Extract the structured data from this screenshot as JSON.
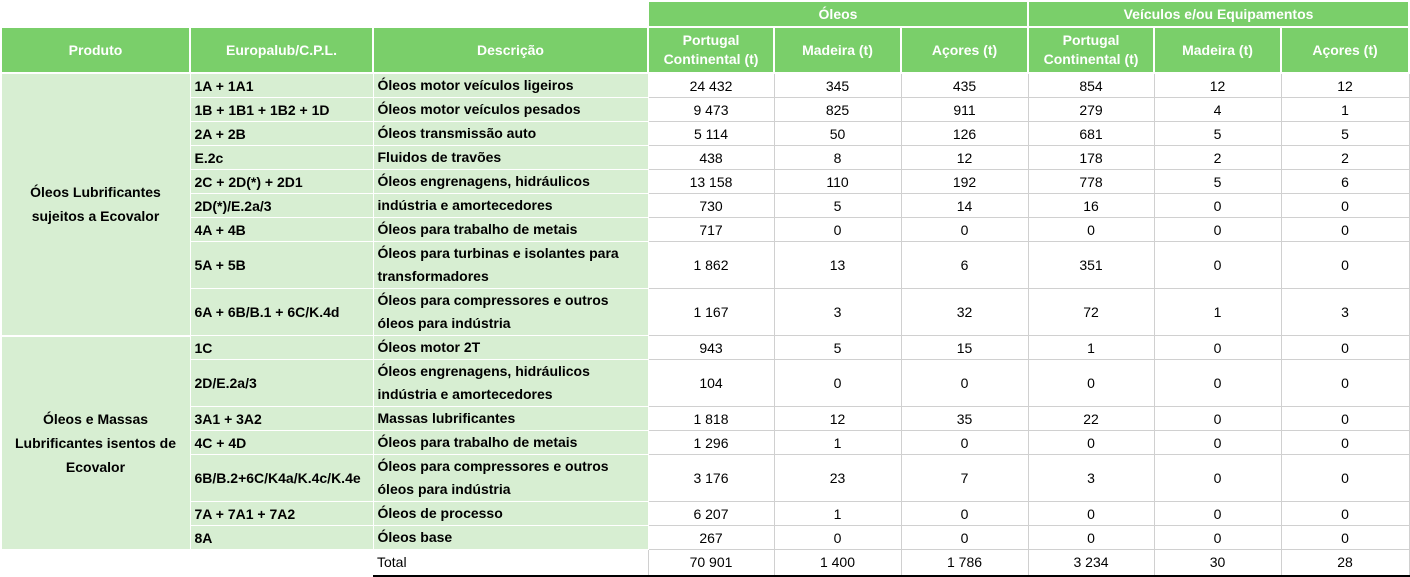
{
  "header": {
    "group_oleos": "Óleos",
    "group_veiculos": "Veículos e/ou Equipamentos",
    "col_produto": "Produto",
    "col_europalub": "Europalub/C.P.L.",
    "col_descricao": "Descrição",
    "oleos_cols": [
      "Portugal Continental (t)",
      "Madeira (t)",
      "Açores (t)"
    ],
    "veiculos_cols": [
      "Portugal Continental (t)",
      "Madeira (t)",
      "Açores (t)"
    ]
  },
  "groups": [
    {
      "produto": "Óleos Lubrificantes sujeitos a Ecovalor",
      "rows": [
        {
          "code": "1A + 1A1",
          "desc": "Óleos motor veículos ligeiros",
          "values": [
            "24 432",
            "345",
            "435",
            "854",
            "12",
            "12"
          ]
        },
        {
          "code": "1B + 1B1 + 1B2 + 1D",
          "desc": "Óleos motor veículos pesados",
          "values": [
            "9 473",
            "825",
            "911",
            "279",
            "4",
            "1"
          ]
        },
        {
          "code": "2A + 2B",
          "desc": "Óleos transmissão auto",
          "values": [
            "5 114",
            "50",
            "126",
            "681",
            "5",
            "5"
          ]
        },
        {
          "code": "E.2c",
          "desc": "Fluidos de travões",
          "values": [
            "438",
            "8",
            "12",
            "178",
            "2",
            "2"
          ]
        },
        {
          "code": "2C + 2D(*) + 2D1",
          "desc": "Óleos engrenagens, hidráulicos",
          "values": [
            "13 158",
            "110",
            "192",
            "778",
            "5",
            "6"
          ]
        },
        {
          "code": "2D(*)/E.2a/3",
          "desc": "indústria e amortecedores",
          "values": [
            "730",
            "5",
            "14",
            "16",
            "0",
            "0"
          ]
        },
        {
          "code": "4A + 4B",
          "desc": "Óleos para trabalho de metais",
          "values": [
            "717",
            "0",
            "0",
            "0",
            "0",
            "0"
          ]
        },
        {
          "code": "5A + 5B",
          "desc": "Óleos para turbinas e isolantes para transformadores",
          "values": [
            "1 862",
            "13",
            "6",
            "351",
            "0",
            "0"
          ]
        },
        {
          "code": "6A + 6B/B.1 + 6C/K.4d",
          "desc": "Óleos para compressores e outros óleos para indústria",
          "values": [
            "1 167",
            "3",
            "32",
            "72",
            "1",
            "3"
          ]
        }
      ]
    },
    {
      "produto": "Óleos e Massas Lubrificantes isentos de Ecovalor",
      "rows": [
        {
          "code": "1C",
          "desc": "Óleos motor 2T",
          "values": [
            "943",
            "5",
            "15",
            "1",
            "0",
            "0"
          ]
        },
        {
          "code": "2D/E.2a/3",
          "desc": "Óleos engrenagens, hidráulicos indústria e amortecedores",
          "values": [
            "104",
            "0",
            "0",
            "0",
            "0",
            "0"
          ]
        },
        {
          "code": "3A1 + 3A2",
          "desc": "Massas lubrificantes",
          "values": [
            "1 818",
            "12",
            "35",
            "22",
            "0",
            "0"
          ]
        },
        {
          "code": "4C + 4D",
          "desc": "Óleos para trabalho de metais",
          "values": [
            "1 296",
            "1",
            "0",
            "0",
            "0",
            "0"
          ]
        },
        {
          "code": "6B/B.2+6C/K4a/K.4c/K.4e",
          "desc": "Óleos para compressores e outros óleos para indústria",
          "values": [
            "3 176",
            "23",
            "7",
            "3",
            "0",
            "0"
          ]
        },
        {
          "code": "7A + 7A1 + 7A2",
          "desc": "Óleos de processo",
          "values": [
            "6 207",
            "1",
            "0",
            "0",
            "0",
            "0"
          ]
        },
        {
          "code": "8A",
          "desc": "Óleos base",
          "values": [
            "267",
            "0",
            "0",
            "0",
            "0",
            "0"
          ]
        }
      ]
    }
  ],
  "total": {
    "label": "Total",
    "values": [
      "70 901",
      "1 400",
      "1 786",
      "3 234",
      "30",
      "28"
    ]
  }
}
